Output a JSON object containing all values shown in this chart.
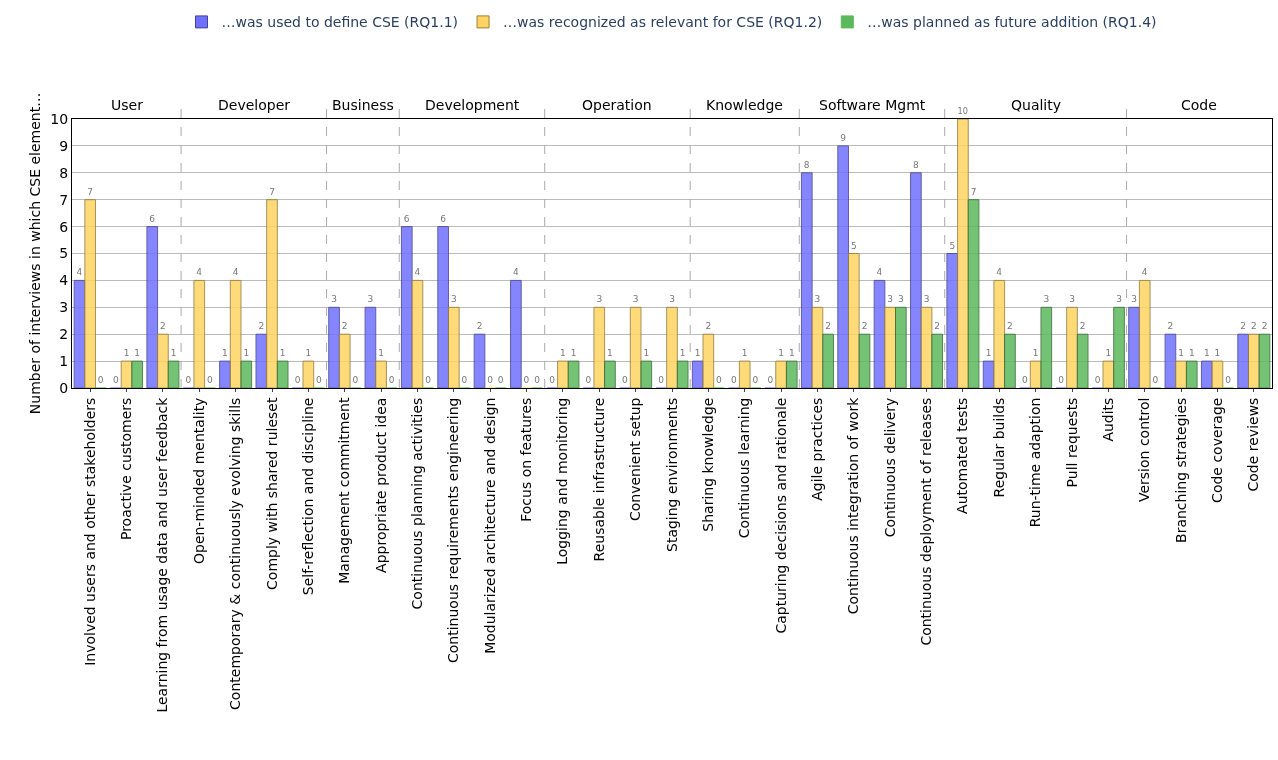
{
  "chart_data": {
    "type": "bar",
    "categories": [
      "Involved users and other stakeholders",
      "Proactive customers",
      "Learning from usage data and user feedback",
      "Open-minded mentality",
      "Contemporary & continuously evolving skills",
      "Comply with shared ruleset",
      "Self-reflection and discipline",
      "Management commitment",
      "Appropriate product idea",
      "Continuous planning activities",
      "Continuous requirements engineering",
      "Modularized architecture and design",
      "Focus on features",
      "Logging and monitoring",
      "Reusable infrastructure",
      "Convenient setup",
      "Staging environments",
      "Sharing knowledge",
      "Continuous learning",
      "Capturing decisions and rationale",
      "Agile practices",
      "Continuous integration of work",
      "Continuous delivery",
      "Continuous deployment of releases",
      "Automated tests",
      "Regular builds",
      "Run-time adaption",
      "Pull requests",
      "Audits",
      "Version control",
      "Branching strategies",
      "Code coverage",
      "Code reviews"
    ],
    "series": [
      {
        "name": "…was used to define CSE (RQ1.1)",
        "color": "#7070ff",
        "values": [
          4,
          0,
          6,
          0,
          1,
          2,
          0,
          3,
          3,
          6,
          6,
          2,
          4,
          0,
          0,
          0,
          0,
          1,
          0,
          0,
          8,
          9,
          4,
          8,
          5,
          1,
          0,
          0,
          0,
          3,
          2,
          1,
          2
        ]
      },
      {
        "name": "…was recognized as relevant for CSE (RQ1.2)",
        "color": "#ffd461",
        "values": [
          7,
          1,
          2,
          4,
          4,
          7,
          1,
          2,
          1,
          4,
          3,
          0,
          0,
          1,
          3,
          3,
          3,
          2,
          1,
          1,
          3,
          5,
          3,
          3,
          10,
          4,
          1,
          3,
          1,
          4,
          1,
          1,
          2
        ]
      },
      {
        "name": "…was planned as future addition (RQ1.4)",
        "color": "#5cb85c",
        "values": [
          0,
          1,
          1,
          0,
          1,
          1,
          0,
          0,
          0,
          0,
          0,
          0,
          0,
          1,
          1,
          1,
          1,
          0,
          0,
          1,
          2,
          2,
          3,
          2,
          7,
          2,
          3,
          2,
          3,
          0,
          1,
          0,
          2
        ]
      }
    ],
    "ylabel": "Number of interviews in which CSE element…",
    "annotations": [
      "User",
      "Developer",
      "Business",
      "Development",
      "Operation",
      "Knowledge",
      "Software Mgmt",
      "Quality",
      "Code"
    ],
    "ylim": [
      0,
      10
    ],
    "yticks": [
      0,
      1,
      2,
      3,
      4,
      5,
      6,
      7,
      8,
      9,
      10
    ],
    "grid": "y",
    "legend": "top",
    "data_labels": true
  }
}
